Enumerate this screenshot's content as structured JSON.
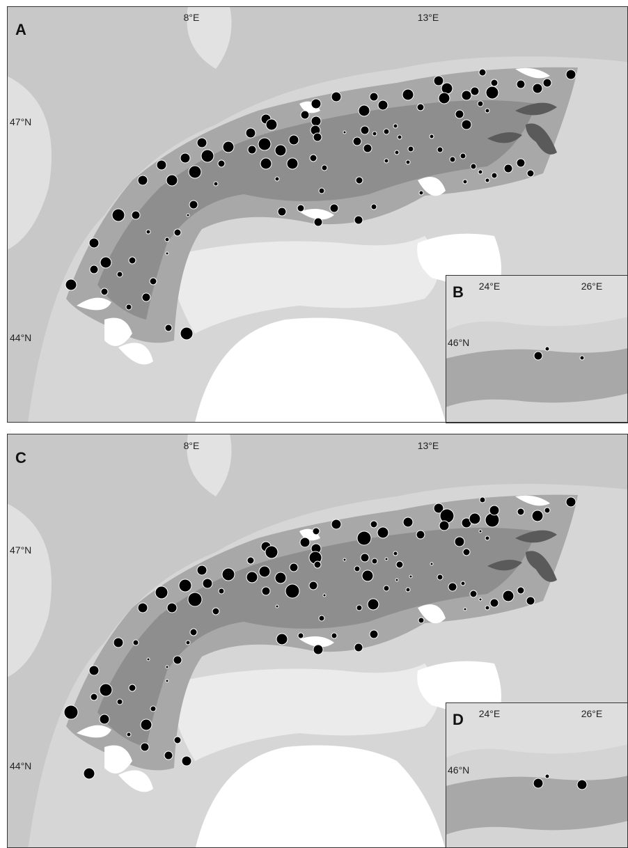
{
  "panels": [
    {
      "label": "A",
      "x_ticks": [
        "8°E",
        "13°E"
      ],
      "y_ticks": [
        "47°N",
        "44°N"
      ]
    },
    {
      "label": "B",
      "x_ticks": [
        "24°E",
        "26°E"
      ],
      "y_ticks": [
        "46°N"
      ]
    },
    {
      "label": "C",
      "x_ticks": [
        "8°E",
        "13°E"
      ],
      "y_ticks": [
        "47°N",
        "44°N"
      ]
    },
    {
      "label": "D",
      "x_ticks": [
        "24°E",
        "26°E"
      ],
      "y_ticks": [
        "46°N"
      ]
    }
  ]
}
